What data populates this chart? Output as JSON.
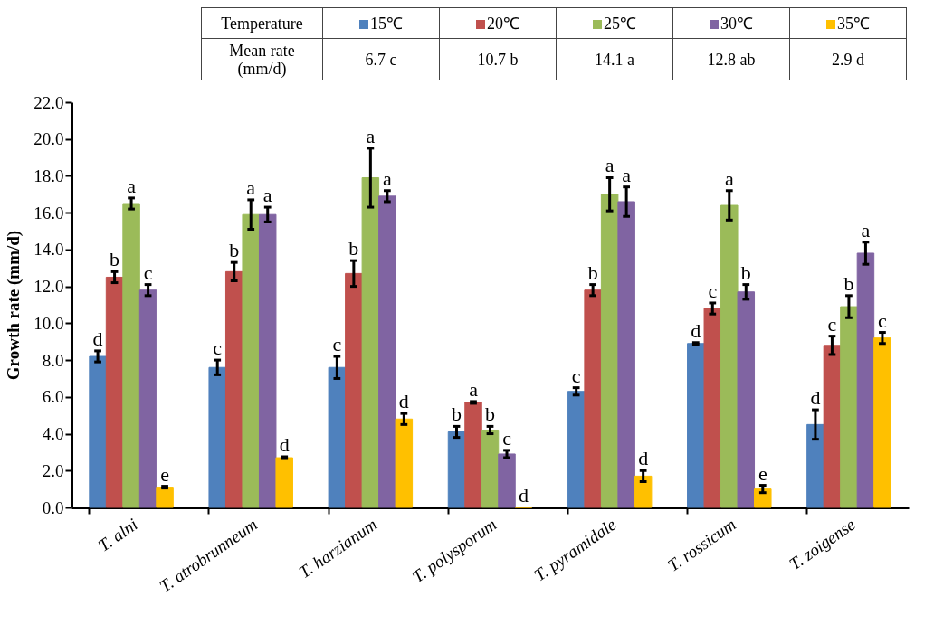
{
  "chart_data": {
    "type": "bar",
    "categories": [
      "T. alni",
      "T. atrobrunneum",
      "T. harzianum",
      "T. polysporum",
      "T. pyramidale",
      "T. rossicum",
      "T. zoigense"
    ],
    "ylabel": "Growth rate (mm/d)",
    "legend_title": "Temperature",
    "legend": "top",
    "annotations": [
      "Mean rate (mm/d)",
      "6.7 c",
      "10.7 b",
      "14.1 a",
      "12.8 ab",
      "2.9 d"
    ],
    "series": [
      {
        "name": "15℃",
        "color": "#4f81bd",
        "values": [
          8.2,
          7.6,
          7.6,
          4.1,
          6.3,
          8.9,
          4.5
        ],
        "errors": [
          0.3,
          0.4,
          0.6,
          0.3,
          0.2,
          0.05,
          0.8
        ],
        "value_labels": [
          "d",
          "c",
          "c",
          "b",
          "c",
          "d",
          "d"
        ]
      },
      {
        "name": "20℃",
        "color": "#c0504d",
        "values": [
          12.5,
          12.8,
          12.7,
          5.7,
          11.8,
          10.8,
          8.8
        ],
        "errors": [
          0.3,
          0.5,
          0.7,
          0.05,
          0.3,
          0.3,
          0.5
        ],
        "value_labels": [
          "b",
          "b",
          "b",
          "a",
          "b",
          "c",
          "c"
        ]
      },
      {
        "name": "25℃",
        "color": "#9bbb59",
        "values": [
          16.5,
          15.9,
          17.9,
          4.2,
          17.0,
          16.4,
          10.9
        ],
        "errors": [
          0.3,
          0.8,
          1.6,
          0.2,
          0.9,
          0.8,
          0.6
        ],
        "value_labels": [
          "a",
          "a",
          "a",
          "b",
          "a",
          "a",
          "b"
        ]
      },
      {
        "name": "30℃",
        "color": "#8064a2",
        "values": [
          11.8,
          15.9,
          16.9,
          2.9,
          16.6,
          11.7,
          13.8
        ],
        "errors": [
          0.3,
          0.4,
          0.3,
          0.2,
          0.8,
          0.4,
          0.6
        ],
        "value_labels": [
          "c",
          "a",
          "a",
          "c",
          "a",
          "b",
          "a"
        ]
      },
      {
        "name": "35℃",
        "color": "#ffc000",
        "values": [
          1.1,
          2.7,
          4.8,
          0,
          1.7,
          1.0,
          9.2
        ],
        "errors": [
          0.05,
          0.05,
          0.3,
          null,
          0.3,
          0.2,
          0.3
        ],
        "value_labels": [
          "e",
          "d",
          "d",
          "d",
          "d",
          "e",
          "c"
        ]
      }
    ],
    "ylim": [
      0,
      22
    ],
    "yticks": [
      {
        "value": 0,
        "label": "0.0"
      },
      {
        "value": 2,
        "label": "2.0"
      },
      {
        "value": 4,
        "label": "4.0"
      },
      {
        "value": 6,
        "label": "6.0"
      },
      {
        "value": 8,
        "label": "8.0"
      },
      {
        "value": 10,
        "label": "10.0"
      },
      {
        "value": 12,
        "label": "12.0"
      },
      {
        "value": 14,
        "label": "14.0"
      },
      {
        "value": 16,
        "label": "16.0"
      },
      {
        "value": 18,
        "label": "18.0"
      },
      {
        "value": 20,
        "label": "20.0"
      },
      {
        "value": 22,
        "label": "22.0"
      }
    ],
    "grid": false
  }
}
